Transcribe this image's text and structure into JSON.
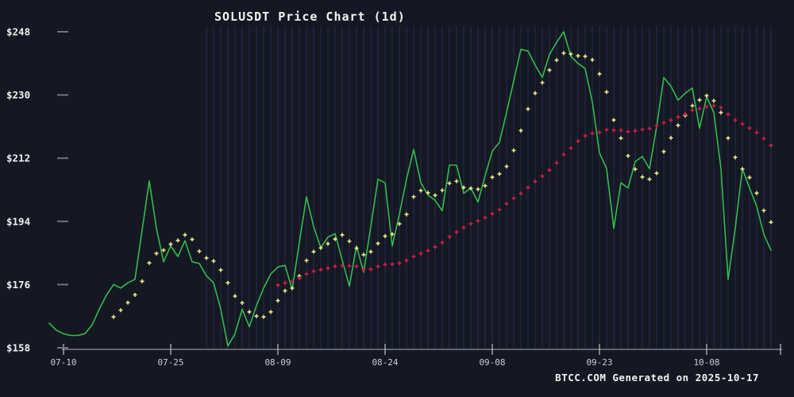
{
  "title": "SOLUSDT Price Chart (1d)",
  "footer": "BTCC.COM Generated on 2025-10-17",
  "colors": {
    "background": "#151822",
    "price_line": "#33bb4e",
    "ma_fast_marker": "#e8e88a",
    "ma_slow_marker": "#cc1f4a",
    "gridline": "#242c52",
    "axis": "#8f949c",
    "y_tick": "#70747c",
    "x_tick": "#c0c3c8"
  },
  "chart_data": {
    "type": "line",
    "title": "SOLUSDT Price Chart (1d)",
    "symbol": "SOLUSDT",
    "interval": "1d",
    "legend_position": "none",
    "grid": "vertical-daily-right-section",
    "ylim": [
      155,
      252
    ],
    "y_ticks": [
      {
        "label": "$248",
        "value": 248
      },
      {
        "label": "$230",
        "value": 230
      },
      {
        "label": "$212",
        "value": 212
      },
      {
        "label": "$194",
        "value": 194
      },
      {
        "label": "$176",
        "value": 176
      },
      {
        "label": "$158",
        "value": 158
      }
    ],
    "x_ticks": [
      {
        "label": "07-10",
        "day_index": 2
      },
      {
        "label": "07-25",
        "day_index": 17
      },
      {
        "label": "08-09",
        "day_index": 32
      },
      {
        "label": "08-24",
        "day_index": 47
      },
      {
        "label": "09-08",
        "day_index": 62
      },
      {
        "label": "09-23",
        "day_index": 77
      },
      {
        "label": "10-08",
        "day_index": 92
      }
    ],
    "series": [
      {
        "name": "price",
        "render": "line",
        "color": "#33bb4e",
        "values": [
          165.0,
          163.0,
          162.0,
          161.5,
          161.5,
          162.0,
          164.5,
          169.0,
          173.0,
          176.0,
          175.0,
          176.5,
          177.5,
          191.5,
          205.5,
          192.0,
          182.5,
          187.0,
          184.0,
          188.5,
          182.5,
          182.0,
          178.5,
          176.5,
          169.0,
          158.5,
          162.0,
          169.0,
          164.0,
          170.0,
          175.0,
          179.0,
          181.0,
          181.5,
          174.5,
          188.0,
          201.0,
          192.5,
          186.5,
          189.5,
          190.5,
          183.0,
          175.5,
          187.0,
          179.5,
          192.5,
          206.0,
          205.0,
          187.0,
          196.0,
          206.0,
          214.5,
          205.0,
          201.5,
          200.0,
          197.0,
          210.0,
          210.0,
          202.0,
          203.5,
          199.5,
          207.0,
          214.0,
          216.5,
          225.0,
          234.0,
          243.0,
          242.5,
          238.5,
          235.0,
          241.5,
          245.0,
          248.0,
          241.0,
          239.0,
          237.5,
          228.0,
          213.5,
          209.0,
          192.0,
          205.0,
          203.5,
          211.0,
          212.5,
          209.0,
          221.0,
          235.0,
          232.5,
          228.5,
          230.5,
          232.0,
          220.5,
          229.5,
          225.0,
          209.0,
          177.5,
          192.0,
          209.0,
          203.5,
          198.3,
          190.3,
          185.8
        ]
      },
      {
        "name": "ma-fast",
        "render": "plus-markers",
        "derived": "moving-average-of-price",
        "window": 7,
        "start_index": 9,
        "color": "#e8e88a"
      },
      {
        "name": "ma-slow",
        "render": "plus-markers",
        "derived": "moving-average-of-price",
        "window": 30,
        "start_index": 32,
        "color": "#cc1f4a"
      }
    ],
    "gridline_start_index": 22,
    "footer_note": "BTCC.COM Generated on 2025-10-17"
  }
}
